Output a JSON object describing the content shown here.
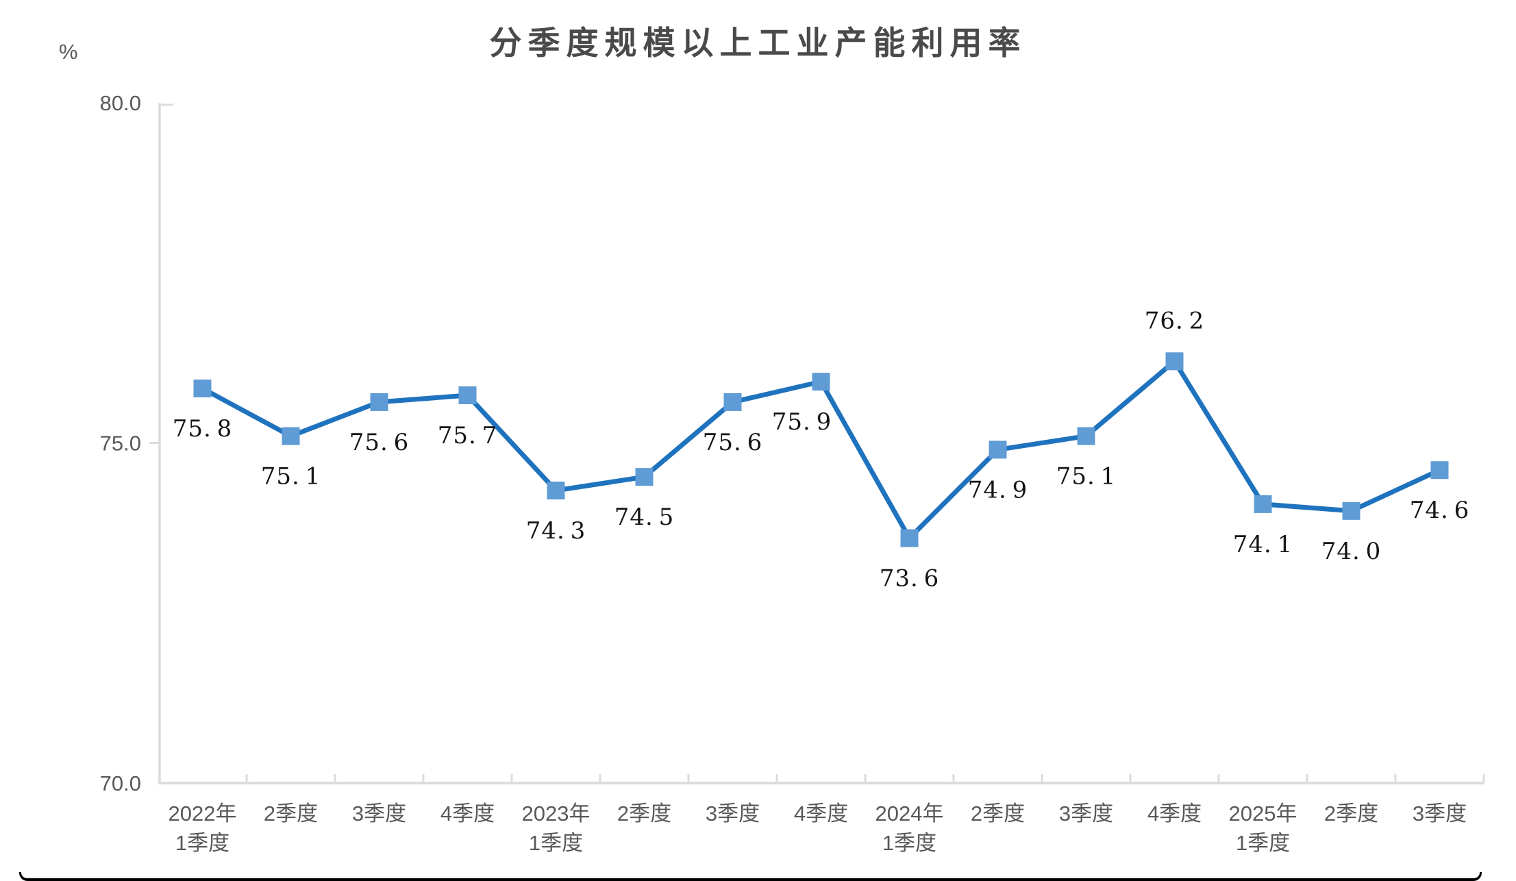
{
  "page": {
    "title": "分季度规模以上工业产能利用率",
    "unit_label": "%"
  },
  "colors": {
    "line": "#1f73be",
    "marker": "#5f9bd5",
    "axis": "#dcdcdc",
    "axis_text": "#595959",
    "data_label_text": "#151515",
    "title_text": "#4a4a4a"
  },
  "chart_data": {
    "type": "line",
    "title": "分季度规模以上工业产能利用率",
    "ylabel": "%",
    "xlabel": "",
    "legend": "none",
    "grid": false,
    "marker": "square",
    "ylim": [
      70.0,
      80.0
    ],
    "yticks": [
      {
        "value": 80.0,
        "label": "80.0"
      },
      {
        "value": 75.0,
        "label": "75.0"
      },
      {
        "value": 70.0,
        "label": "70.0"
      }
    ],
    "categories": [
      "2022年\n1季度",
      "2季度",
      "3季度",
      "4季度",
      "2023年\n1季度",
      "2季度",
      "3季度",
      "4季度",
      "2024年\n1季度",
      "2季度",
      "3季度",
      "4季度",
      "2025年\n1季度",
      "2季度",
      "3季度"
    ],
    "values": [
      75.8,
      75.1,
      75.6,
      75.7,
      74.3,
      74.5,
      75.6,
      75.9,
      73.6,
      74.9,
      75.1,
      76.2,
      74.1,
      74.0,
      74.6
    ],
    "data_labels": [
      "75.8",
      "75.1",
      "75.6",
      "75.7",
      "74.3",
      "74.5",
      "75.6",
      "75.9",
      "73.6",
      "74.9",
      "75.1",
      "76.2",
      "74.1",
      "74.0",
      "74.6"
    ],
    "data_label_positions": [
      "below",
      "below",
      "below",
      "below",
      "below",
      "below",
      "below",
      "below",
      "below",
      "below",
      "below",
      "above",
      "below",
      "below",
      "below"
    ]
  }
}
